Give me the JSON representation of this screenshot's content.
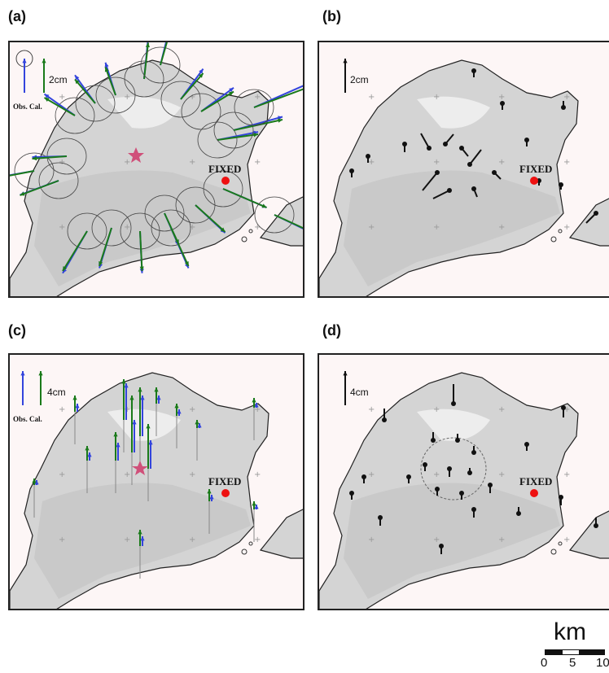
{
  "panels": [
    {
      "id": "a",
      "label": "(a)",
      "scale": "2cm",
      "legend": "Obs. Cal.",
      "fixed": "FIXED"
    },
    {
      "id": "b",
      "label": "(b)",
      "scale": "2cm",
      "fixed": "FIXED"
    },
    {
      "id": "c",
      "label": "(c)",
      "scale": "4cm",
      "legend": "Obs. Cal.",
      "fixed": "FIXED"
    },
    {
      "id": "d",
      "label": "(d)",
      "scale": "4cm",
      "fixed": "FIXED"
    }
  ],
  "scale_bar": {
    "unit": "km",
    "ticks": [
      "0",
      "5",
      "10"
    ]
  },
  "colors": {
    "observed": "#3344dd",
    "calculated": "#1a7a1a",
    "residual": "#111111",
    "fixed_point": "#ee1111",
    "source": "#d0507a",
    "land": "#d4d4d4",
    "sea": "#fdf6f6"
  }
}
